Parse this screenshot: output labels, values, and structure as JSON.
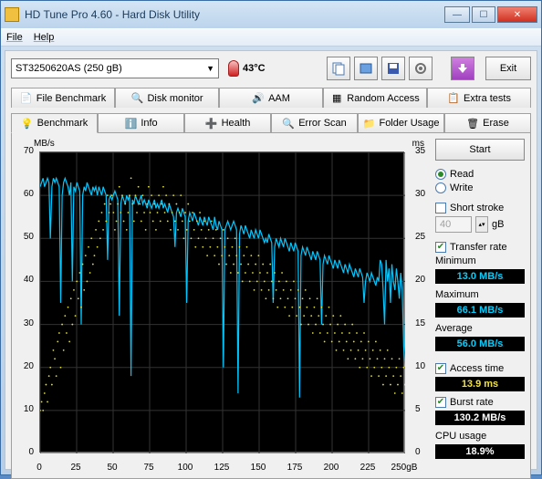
{
  "window": {
    "title": "HD Tune Pro 4.60 - Hard Disk Utility"
  },
  "menu": {
    "file": "File",
    "help": "Help"
  },
  "toolbar": {
    "drive": "ST3250620AS (250 gB)",
    "temperature": "43°C",
    "exit": "Exit"
  },
  "tabs_top": {
    "file_benchmark": "File Benchmark",
    "disk_monitor": "Disk monitor",
    "aam": "AAM",
    "random_access": "Random Access",
    "extra_tests": "Extra tests"
  },
  "tabs_bottom": {
    "benchmark": "Benchmark",
    "info": "Info",
    "health": "Health",
    "error_scan": "Error Scan",
    "folder_usage": "Folder Usage",
    "erase": "Erase"
  },
  "chart": {
    "left_unit": "MB/s",
    "right_unit": "ms",
    "x_unit_last": "250gB",
    "bg": "#000000",
    "grid": "#303030",
    "transfer_color": "#00c8ff",
    "access_color": "#e0e040",
    "left_ticks": [
      0,
      10,
      20,
      30,
      40,
      50,
      60,
      70
    ],
    "right_ticks": [
      0,
      5,
      10,
      15,
      20,
      25,
      30,
      35
    ],
    "x_ticks": [
      0,
      25,
      50,
      75,
      100,
      125,
      150,
      175,
      200,
      225,
      250
    ],
    "transfer": [
      62,
      63,
      64,
      62,
      63,
      64,
      63,
      50,
      62,
      64,
      63,
      64,
      63,
      62,
      35,
      60,
      63,
      64,
      63,
      62,
      60,
      63,
      40,
      62,
      61,
      63,
      62,
      61,
      30,
      60,
      62,
      61,
      63,
      62,
      61,
      60,
      62,
      61,
      62,
      60,
      62,
      61,
      60,
      62,
      61,
      60,
      45,
      59,
      60,
      59,
      60,
      61,
      60,
      59,
      32,
      58,
      60,
      59,
      58,
      60,
      59,
      60,
      18,
      59,
      58,
      60,
      59,
      58,
      59,
      60,
      58,
      59,
      58,
      57,
      59,
      58,
      57,
      58,
      59,
      57,
      58,
      57,
      58,
      59,
      57,
      58,
      57,
      56,
      58,
      57,
      56,
      55,
      48,
      56,
      57,
      56,
      55,
      57,
      56,
      55,
      35,
      54,
      56,
      55,
      54,
      56,
      55,
      54,
      53,
      55,
      54,
      53,
      55,
      54,
      53,
      55,
      54,
      53,
      52,
      55,
      53,
      52,
      54,
      53,
      52,
      20,
      52,
      53,
      54,
      53,
      52,
      53,
      54,
      53,
      52,
      14,
      51,
      53,
      52,
      51,
      53,
      52,
      51,
      50,
      52,
      51,
      50,
      52,
      51,
      50,
      52,
      51,
      50,
      49,
      50,
      49,
      51,
      50,
      49,
      35,
      48,
      50,
      49,
      48,
      50,
      49,
      48,
      50,
      49,
      48,
      47,
      49,
      48,
      47,
      49,
      48,
      47,
      13,
      46,
      48,
      47,
      46,
      48,
      47,
      46,
      45,
      47,
      46,
      45,
      47,
      46,
      45,
      30,
      44,
      46,
      45,
      44,
      46,
      45,
      44,
      43,
      45,
      44,
      43,
      45,
      44,
      43,
      42,
      44,
      43,
      42,
      44,
      43,
      42,
      41,
      43,
      42,
      41,
      43,
      42,
      41,
      35,
      40,
      42,
      41,
      40,
      42,
      41,
      40,
      39,
      41,
      40,
      45,
      44,
      38,
      30,
      45,
      40,
      43,
      35,
      44,
      40,
      38,
      43,
      40,
      36,
      42,
      38,
      25,
      20
    ],
    "access": [
      5,
      6,
      5,
      7,
      8,
      6,
      9,
      10,
      8,
      12,
      11,
      9,
      13,
      14,
      10,
      15,
      12,
      16,
      14,
      17,
      13,
      18,
      15,
      19,
      16,
      20,
      18,
      21,
      17,
      22,
      19,
      23,
      20,
      24,
      21,
      25,
      22,
      23,
      26,
      24,
      27,
      25,
      28,
      26,
      29,
      27,
      30,
      28,
      29,
      30,
      28,
      26,
      27,
      29,
      31,
      28,
      30,
      27,
      29,
      26,
      28,
      30,
      32,
      29,
      27,
      30,
      28,
      31,
      29,
      27,
      30,
      28,
      26,
      29,
      31,
      28,
      30,
      27,
      29,
      26,
      28,
      30,
      27,
      29,
      31,
      28,
      30,
      27,
      29,
      26,
      28,
      30,
      27,
      29,
      26,
      28,
      30,
      27,
      25,
      28,
      26,
      29,
      27,
      25,
      28,
      26,
      24,
      27,
      25,
      28,
      26,
      24,
      27,
      25,
      23,
      26,
      24,
      27,
      25,
      23,
      26,
      24,
      22,
      25,
      23,
      26,
      24,
      22,
      25,
      23,
      21,
      24,
      22,
      25,
      23,
      21,
      24,
      22,
      20,
      23,
      21,
      24,
      22,
      20,
      23,
      21,
      19,
      22,
      20,
      23,
      21,
      19,
      22,
      20,
      18,
      21,
      19,
      22,
      20,
      18,
      21,
      19,
      17,
      20,
      18,
      21,
      19,
      17,
      20,
      18,
      16,
      19,
      17,
      20,
      18,
      16,
      19,
      17,
      15,
      18,
      16,
      19,
      17,
      15,
      18,
      16,
      14,
      17,
      15,
      18,
      16,
      14,
      17,
      15,
      13,
      16,
      14,
      17,
      15,
      13,
      16,
      14,
      12,
      15,
      13,
      16,
      14,
      12,
      15,
      13,
      11,
      14,
      12,
      15,
      13,
      11,
      14,
      12,
      10,
      13,
      11,
      14,
      12,
      10,
      13,
      11,
      9,
      12,
      10,
      13,
      11,
      9,
      12,
      10,
      8,
      11,
      9,
      12,
      10,
      8,
      11,
      9,
      7,
      10,
      8,
      11,
      9,
      7,
      10,
      8
    ]
  },
  "side": {
    "start": "Start",
    "read": "Read",
    "write": "Write",
    "short_stroke": "Short stroke",
    "short_stroke_val": "40",
    "short_stroke_unit": "gB",
    "transfer_rate": "Transfer rate",
    "minimum": "Minimum",
    "minimum_val": "13.0 MB/s",
    "maximum": "Maximum",
    "maximum_val": "66.1 MB/s",
    "average": "Average",
    "average_val": "56.0 MB/s",
    "access_time": "Access time",
    "access_time_val": "13.9 ms",
    "burst_rate": "Burst rate",
    "burst_rate_val": "130.2 MB/s",
    "cpu_usage": "CPU usage",
    "cpu_usage_val": "18.9%"
  }
}
